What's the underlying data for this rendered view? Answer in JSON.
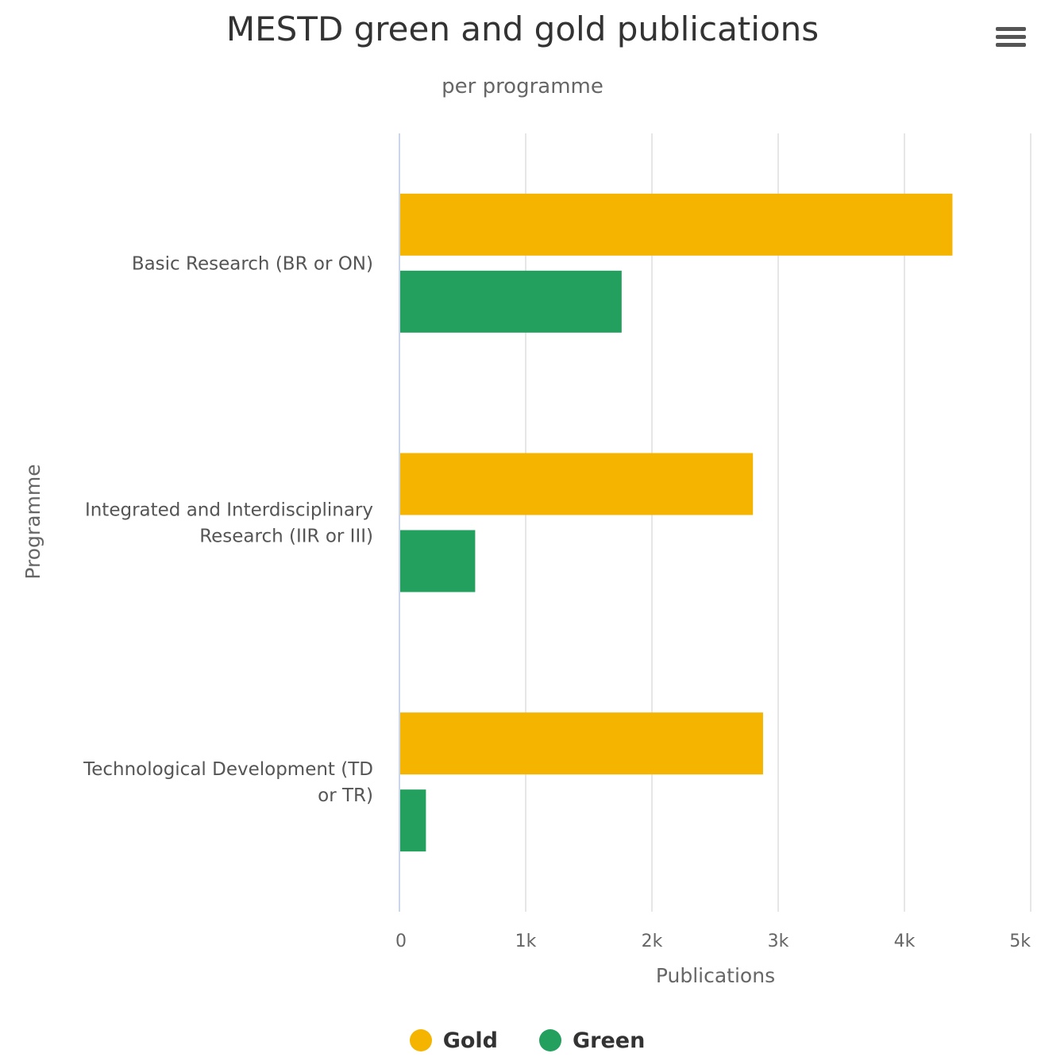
{
  "header": {
    "title": "MESTD green and gold publications",
    "subtitle": "per programme",
    "menu_icon": "hamburger-menu-icon"
  },
  "chart_data": {
    "type": "bar",
    "orientation": "horizontal",
    "title": "MESTD green and gold publications",
    "subtitle": "per programme",
    "xlabel": "Publications",
    "ylabel": "Programme",
    "categories": [
      "Basic Research (BR or ON)",
      "Integrated and Interdisciplinary Research (IIR or III)",
      "Technological Development (TD or TR)"
    ],
    "category_lines": [
      [
        "Basic Research (BR or ON)"
      ],
      [
        "Integrated and Interdisciplinary",
        "Research (IIR or III)"
      ],
      [
        "Technological Development (TD",
        "or TR)"
      ]
    ],
    "series": [
      {
        "name": "Gold",
        "color": "#f4b400",
        "values": [
          4380,
          2800,
          2880
        ]
      },
      {
        "name": "Green",
        "color": "#23a05e",
        "values": [
          1760,
          600,
          210
        ]
      }
    ],
    "xlim": [
      0,
      5000
    ],
    "ticks": [
      0,
      1000,
      2000,
      3000,
      4000,
      5000
    ],
    "tick_labels": [
      "0",
      "1k",
      "2k",
      "3k",
      "4k",
      "5k"
    ],
    "grid": true,
    "legend_position": "bottom-center"
  }
}
